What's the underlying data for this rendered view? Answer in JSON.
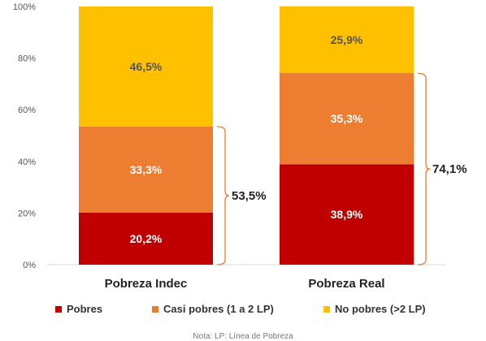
{
  "chart_data": {
    "type": "bar",
    "stacked": true,
    "categories": [
      "Pobreza Indec",
      "Pobreza Real"
    ],
    "series": [
      {
        "name": "Pobres",
        "values": [
          20.2,
          38.9
        ],
        "labels": [
          "20,2%",
          "38,9%"
        ],
        "color": "#c00000"
      },
      {
        "name": "Casi pobres (1 a 2 LP)",
        "values": [
          33.3,
          35.3
        ],
        "labels": [
          "33,3%",
          "35,3%"
        ],
        "color": "#ed7d31"
      },
      {
        "name": "No pobres (>2 LP)",
        "values": [
          46.5,
          25.9
        ],
        "labels": [
          "46,5%",
          "25,9%"
        ],
        "color": "#ffc000"
      }
    ],
    "yticks": [
      "0%",
      "20%",
      "40%",
      "60%",
      "80%",
      "100%"
    ],
    "ylim": [
      0,
      100
    ],
    "brace_totals": [
      {
        "value": 53.5,
        "label": "53,5%"
      },
      {
        "value": 74.1,
        "label": "74,1%"
      }
    ],
    "legend_position": "bottom",
    "footnote": "Nota: LP: Línea de Pobreza",
    "label_colors": {
      "Pobres": "#ffffff",
      "Casi pobres (1 a 2 LP)": "#ffffff",
      "No pobres (>2 LP)": "#555555"
    }
  }
}
